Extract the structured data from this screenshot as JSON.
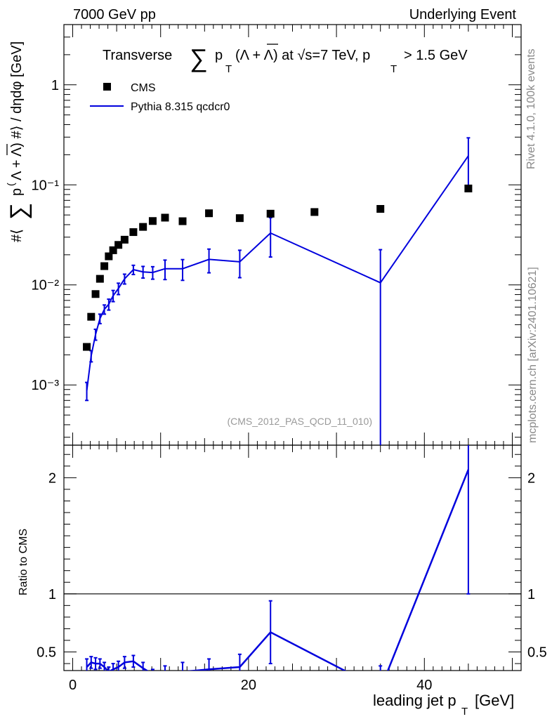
{
  "header": {
    "left": "7000 GeV pp",
    "right": "Underlying Event"
  },
  "side_labels": {
    "rivet": "Rivet 4.1.0,  100k events",
    "mcplots": "mcplots.cern.ch [arXiv:2401.10621]"
  },
  "reference": "(CMS_2012_PAS_QCD_11_010)",
  "colors": {
    "mc": "#0000dd",
    "data": "#000000",
    "side": "#888888"
  },
  "chart_data": [
    {
      "type": "scatter",
      "panel": "main",
      "title": "Transverse ∑ p_T (Λ + Λ̄) at √s=7 TeV, p_T > 1.5 GeV",
      "ylabel": "#⟨ ∑ p_T (Λ + Λ̄) #⟩ / dηdφ [GeV]",
      "yscale": "log",
      "ylim": [
        0.00025,
        4.0
      ],
      "xlim": [
        -1,
        51
      ],
      "ytick_labels": [
        "10⁻³",
        "10⁻²",
        "10⁻¹",
        "1"
      ],
      "legend": {
        "position": "top-left",
        "entries": [
          "CMS",
          "Pythia 8.315 qcdcr0"
        ]
      },
      "series": [
        {
          "name": "CMS",
          "style": "markers",
          "x": [
            1.6,
            2.1,
            2.6,
            3.1,
            3.6,
            4.1,
            4.6,
            5.2,
            5.9,
            6.9,
            8.0,
            9.1,
            10.5,
            12.5,
            15.5,
            19.0,
            22.5,
            27.5,
            35.0,
            45.0
          ],
          "y": [
            0.0024,
            0.0048,
            0.0081,
            0.0115,
            0.0154,
            0.0193,
            0.0222,
            0.0251,
            0.0283,
            0.0337,
            0.038,
            0.0435,
            0.047,
            0.0433,
            0.052,
            0.0465,
            0.0515,
            0.0535,
            0.0575,
            0.092
          ]
        },
        {
          "name": "Pythia 8.315 qcdcr0",
          "style": "line+errors",
          "x": [
            1.6,
            2.1,
            2.6,
            3.1,
            3.6,
            4.1,
            4.6,
            5.2,
            5.9,
            6.9,
            8.0,
            9.1,
            10.5,
            12.5,
            15.5,
            19.0,
            22.5,
            35.0,
            45.0
          ],
          "y": [
            0.00088,
            0.00195,
            0.0032,
            0.0046,
            0.0057,
            0.0064,
            0.0078,
            0.0092,
            0.0115,
            0.0142,
            0.0135,
            0.0133,
            0.0145,
            0.0145,
            0.018,
            0.017,
            0.033,
            0.0105,
            0.195
          ],
          "err": [
            0.00018,
            0.00025,
            0.0004,
            0.0005,
            0.0006,
            0.0008,
            0.001,
            0.0012,
            0.0013,
            0.0015,
            0.0018,
            0.0019,
            0.0032,
            0.0034,
            0.0048,
            0.0052,
            0.014,
            0.012,
            0.1
          ]
        }
      ]
    },
    {
      "type": "line",
      "panel": "ratio",
      "xlabel": "leading jet p_T [GeV]",
      "ylabel": "Ratio to CMS",
      "ylim": [
        0.34,
        2.28
      ],
      "xlim": [
        -1,
        51
      ],
      "xtick_labels": [
        "0",
        "20",
        "40"
      ],
      "ytick_labels": [
        "0.5",
        "1",
        "2"
      ],
      "reference_line": 1,
      "series": [
        {
          "name": "Pythia 8.315 qcdcr0",
          "x": [
            1.6,
            2.1,
            2.6,
            3.1,
            3.6,
            4.1,
            4.6,
            5.2,
            5.9,
            6.9,
            8.0,
            9.1,
            10.5,
            12.5,
            15.5,
            19.0,
            22.5,
            35.0,
            45.0
          ],
          "y": [
            0.37,
            0.41,
            0.4,
            0.4,
            0.37,
            0.33,
            0.35,
            0.37,
            0.41,
            0.42,
            0.36,
            0.31,
            0.31,
            0.33,
            0.35,
            0.37,
            0.67,
            0.18,
            2.07
          ],
          "err": [
            0.07,
            0.05,
            0.05,
            0.04,
            0.04,
            0.04,
            0.05,
            0.05,
            0.05,
            0.05,
            0.05,
            0.04,
            0.07,
            0.08,
            0.09,
            0.11,
            0.27,
            0.2,
            1.07
          ]
        }
      ]
    }
  ]
}
